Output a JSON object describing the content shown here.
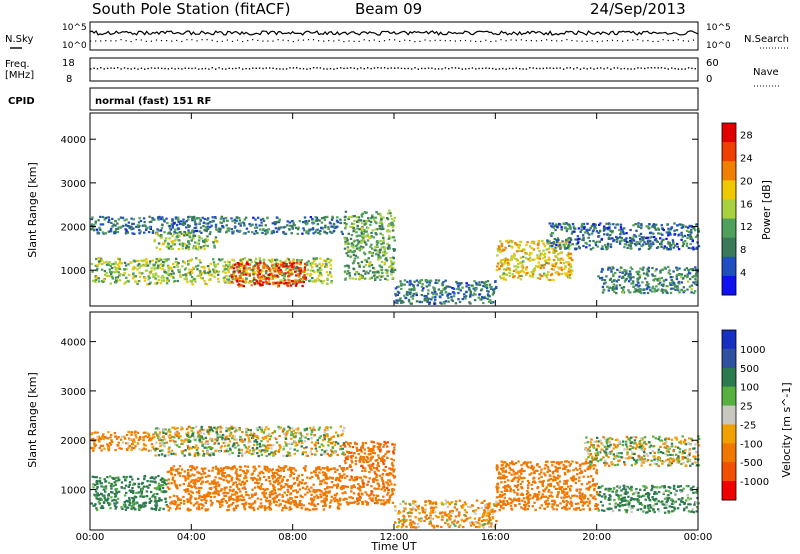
{
  "header": {
    "station": "South Pole Station (fitACF)",
    "beam": "Beam 09",
    "date": "24/Sep/2013"
  },
  "top_panels": {
    "nsky_label": "N.Sky",
    "nsky_ticks": [
      "10^5",
      "10^0"
    ],
    "nsearch_label": "N.Search",
    "freq_label_top": "Freq.",
    "freq_label_bottom": "[MHz]",
    "freq_ticks": [
      "18",
      "8"
    ],
    "nave_label": "Nave",
    "nave_ticks": [
      "60",
      "0"
    ],
    "cpid_label": "CPID",
    "cpid_value": "normal (fast) 151 RF"
  },
  "colors": {
    "power_scale": [
      "#1010f0",
      "#2050c0",
      "#3a7a5a",
      "#4fa05a",
      "#a8d040",
      "#f0c800",
      "#f08000",
      "#f04000",
      "#e00000"
    ],
    "velocity_scale": [
      "#1830c0",
      "#3050a0",
      "#2e7a50",
      "#58b040",
      "#c8c8c0",
      "#f0a000",
      "#f07800",
      "#f05000",
      "#f00000"
    ]
  },
  "chart_data": [
    {
      "type": "heatmap",
      "panel": "power",
      "ylabel": "Slant Range [km]",
      "yticks": [
        "1000",
        "2000",
        "3000",
        "4000"
      ],
      "ylim": [
        180,
        4600
      ],
      "colorbar_label": "Power [dB]",
      "colorbar_ticks": [
        "4",
        "8",
        "12",
        "16",
        "20",
        "24",
        "28"
      ],
      "clim": [
        0,
        30
      ],
      "xlabel": "Time UT",
      "xticks": [
        "00:00",
        "04:00",
        "08:00",
        "12:00",
        "16:00",
        "20:00",
        "00:00"
      ],
      "x_hours": [
        0,
        4,
        8,
        12,
        16,
        20,
        24
      ],
      "features": [
        {
          "t": [
            0.0,
            10.0
          ],
          "r": [
            1850,
            2250
          ],
          "value": 8
        },
        {
          "t": [
            2.5,
            5.0
          ],
          "r": [
            1500,
            1900
          ],
          "value": 13
        },
        {
          "t": [
            0.0,
            9.5
          ],
          "r": [
            700,
            1300
          ],
          "value": 14
        },
        {
          "t": [
            5.5,
            8.5
          ],
          "r": [
            650,
            1200
          ],
          "value": 26
        },
        {
          "t": [
            10.0,
            12.0
          ],
          "r": [
            800,
            2400
          ],
          "value": 12
        },
        {
          "t": [
            12.0,
            16.0
          ],
          "r": [
            250,
            800
          ],
          "value": 8
        },
        {
          "t": [
            16.0,
            19.0
          ],
          "r": [
            800,
            1700
          ],
          "value": 18
        },
        {
          "t": [
            18.0,
            24.0
          ],
          "r": [
            1500,
            2100
          ],
          "value": 7
        },
        {
          "t": [
            20.0,
            24.0
          ],
          "r": [
            500,
            1100
          ],
          "value": 9
        }
      ]
    },
    {
      "type": "heatmap",
      "panel": "velocity",
      "ylabel": "Slant Range [km]",
      "yticks": [
        "1000",
        "2000",
        "3000",
        "4000"
      ],
      "ylim": [
        180,
        4600
      ],
      "colorbar_label": "Velocity [m s^-1]",
      "colorbar_ticks": [
        "1000",
        "500",
        "100",
        "25",
        "-25",
        "-100",
        "-500",
        "-1000"
      ],
      "xlabel": "Time UT",
      "xticks": [
        "00:00",
        "04:00",
        "08:00",
        "12:00",
        "16:00",
        "20:00",
        "00:00"
      ],
      "x_hours": [
        0,
        4,
        8,
        12,
        16,
        20,
        24
      ],
      "features": [
        {
          "t": [
            0.0,
            2.5
          ],
          "r": [
            1800,
            2200
          ],
          "value": -150
        },
        {
          "t": [
            2.5,
            10.0
          ],
          "r": [
            1700,
            2300
          ],
          "value": 0
        },
        {
          "t": [
            0.0,
            3.0
          ],
          "r": [
            600,
            1300
          ],
          "value": 200
        },
        {
          "t": [
            3.0,
            10.0
          ],
          "r": [
            600,
            1500
          ],
          "value": -250
        },
        {
          "t": [
            10.0,
            12.0
          ],
          "r": [
            700,
            2000
          ],
          "value": -400
        },
        {
          "t": [
            12.0,
            16.0
          ],
          "r": [
            250,
            800
          ],
          "value": -100
        },
        {
          "t": [
            16.0,
            20.0
          ],
          "r": [
            600,
            1600
          ],
          "value": -300
        },
        {
          "t": [
            19.5,
            24.0
          ],
          "r": [
            1500,
            2100
          ],
          "value": 0
        },
        {
          "t": [
            20.0,
            24.0
          ],
          "r": [
            550,
            1100
          ],
          "value": 150
        }
      ]
    }
  ]
}
